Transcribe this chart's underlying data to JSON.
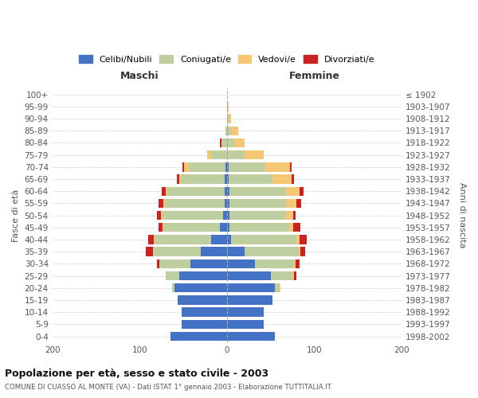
{
  "age_groups": [
    "0-4",
    "5-9",
    "10-14",
    "15-19",
    "20-24",
    "25-29",
    "30-34",
    "35-39",
    "40-44",
    "45-49",
    "50-54",
    "55-59",
    "60-64",
    "65-69",
    "70-74",
    "75-79",
    "80-84",
    "85-89",
    "90-94",
    "95-99",
    "100+"
  ],
  "birth_years": [
    "1998-2002",
    "1993-1997",
    "1988-1992",
    "1983-1987",
    "1978-1982",
    "1973-1977",
    "1968-1972",
    "1963-1967",
    "1958-1962",
    "1953-1957",
    "1948-1952",
    "1943-1947",
    "1938-1942",
    "1933-1937",
    "1928-1932",
    "1923-1927",
    "1918-1922",
    "1913-1917",
    "1908-1912",
    "1903-1907",
    "≤ 1902"
  ],
  "males": {
    "celibi": [
      65,
      52,
      52,
      56,
      60,
      55,
      42,
      30,
      18,
      8,
      4,
      3,
      3,
      3,
      2,
      0,
      0,
      0,
      0,
      0,
      0
    ],
    "coniugati": [
      0,
      0,
      0,
      0,
      3,
      15,
      35,
      55,
      65,
      65,
      70,
      68,
      65,
      50,
      42,
      18,
      6,
      2,
      0,
      0,
      0
    ],
    "vedovi": [
      0,
      0,
      0,
      0,
      0,
      0,
      0,
      0,
      1,
      1,
      2,
      2,
      2,
      2,
      5,
      5,
      0,
      0,
      0,
      0,
      0
    ],
    "divorziati": [
      0,
      0,
      0,
      0,
      0,
      0,
      3,
      8,
      6,
      4,
      4,
      5,
      5,
      2,
      2,
      0,
      2,
      0,
      0,
      0,
      0
    ]
  },
  "females": {
    "nubili": [
      55,
      42,
      42,
      52,
      55,
      50,
      32,
      20,
      5,
      3,
      3,
      3,
      3,
      2,
      2,
      0,
      0,
      0,
      0,
      0,
      0
    ],
    "coniugate": [
      0,
      0,
      0,
      0,
      5,
      25,
      45,
      62,
      75,
      68,
      65,
      65,
      65,
      50,
      42,
      20,
      8,
      5,
      2,
      0,
      0
    ],
    "vedove": [
      0,
      0,
      0,
      0,
      1,
      2,
      2,
      2,
      3,
      5,
      8,
      12,
      15,
      22,
      28,
      22,
      12,
      8,
      3,
      2,
      0
    ],
    "divorziate": [
      0,
      0,
      0,
      0,
      0,
      3,
      4,
      6,
      8,
      8,
      3,
      5,
      5,
      3,
      2,
      0,
      0,
      0,
      0,
      0,
      0
    ]
  },
  "colors": {
    "celibi": "#4472C4",
    "coniugati": "#BFCE9E",
    "vedovi": "#F5C775",
    "divorziati": "#CC2222"
  },
  "xlim": 200,
  "title": "Popolazione per età, sesso e stato civile - 2003",
  "subtitle": "COMUNE DI CUASSO AL MONTE (VA) - Dati ISTAT 1° gennaio 2003 - Elaborazione TUTTITALIA.IT",
  "ylabel_left": "Fasce di età",
  "ylabel_right": "Anni di nascita",
  "xlabel_left": "Maschi",
  "xlabel_right": "Femmine",
  "background_color": "#FFFFFF",
  "grid_color": "#CCCCCC"
}
